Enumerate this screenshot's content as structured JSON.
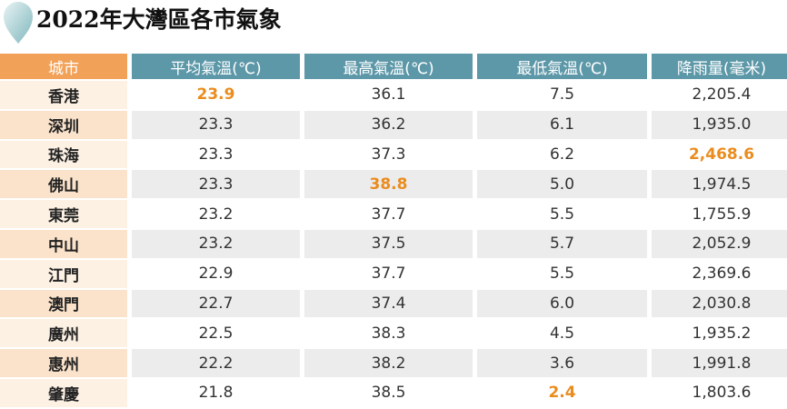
{
  "header": {
    "title": "2022年大灣區各市氣象"
  },
  "table": {
    "headers": [
      "城市",
      "平均氣溫(℃)",
      "最高氣溫(℃)",
      "最低氣溫(℃)",
      "降雨量(毫米)"
    ],
    "rows": [
      [
        "香港",
        {
          "text": "23.9",
          "highlight": true
        },
        "36.1",
        "7.5",
        "2,205.4"
      ],
      [
        "深圳",
        "23.3",
        "36.2",
        "6.1",
        "1,935.0"
      ],
      [
        "珠海",
        "23.3",
        "37.3",
        "6.2",
        {
          "text": "2,468.6",
          "highlight": true
        }
      ],
      [
        "佛山",
        "23.3",
        {
          "text": "38.8",
          "highlight": true
        },
        "5.0",
        "1,974.5"
      ],
      [
        "東莞",
        "23.2",
        "37.7",
        "5.5",
        "1,755.9"
      ],
      [
        "中山",
        "23.2",
        "37.5",
        "5.7",
        "2,052.9"
      ],
      [
        "江門",
        "22.9",
        "37.7",
        "5.5",
        "2,369.6"
      ],
      [
        "澳門",
        "22.7",
        "37.4",
        "6.0",
        "2,030.8"
      ],
      [
        "廣州",
        "22.5",
        "38.3",
        "4.5",
        "1,935.2"
      ],
      [
        "惠州",
        "22.2",
        "38.2",
        "3.6",
        "1,991.8"
      ],
      [
        "肇慶",
        "21.8",
        "38.5",
        {
          "text": "2.4",
          "highlight": true
        },
        "1,803.6"
      ]
    ]
  }
}
